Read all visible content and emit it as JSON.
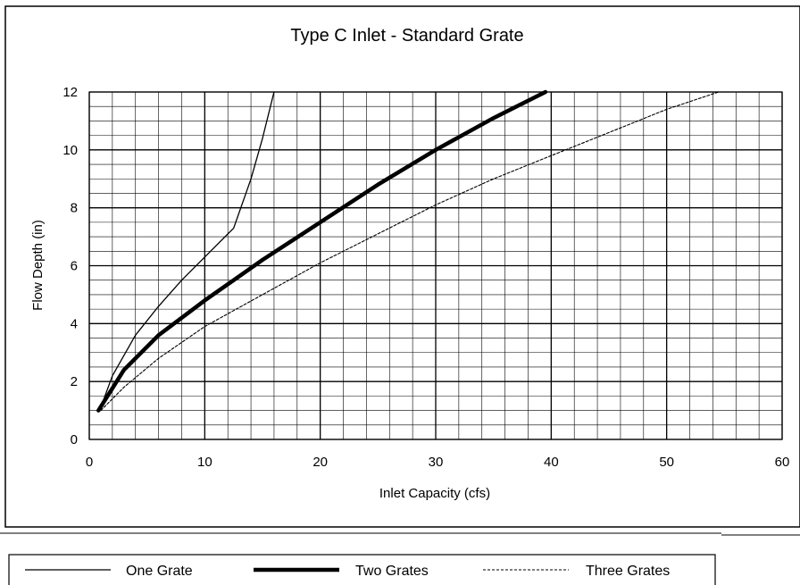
{
  "chart_data": {
    "type": "line",
    "title": "Type C Inlet - Standard Grate",
    "xlabel": "Inlet Capacity (cfs)",
    "ylabel": "Flow Depth (in)",
    "xlim": [
      0,
      60
    ],
    "ylim": [
      0,
      12
    ],
    "x_ticks": [
      0,
      10,
      20,
      30,
      40,
      50,
      60
    ],
    "y_ticks": [
      0,
      2,
      4,
      6,
      8,
      10,
      12
    ],
    "minor_grid_x": 2,
    "minor_grid_y": 0.5,
    "grid": true,
    "legend_position": "bottom",
    "series": [
      {
        "name": "One Grate",
        "style": "thin-solid",
        "color": "#000000",
        "x": [
          0.9,
          2.0,
          4.0,
          6.0,
          8.0,
          10.0,
          12.5,
          14.0,
          15.0,
          16.0
        ],
        "y": [
          1.0,
          2.2,
          3.6,
          4.6,
          5.5,
          6.3,
          7.3,
          9.0,
          10.4,
          12.0
        ]
      },
      {
        "name": "Two Grates",
        "style": "thick-solid",
        "color": "#000000",
        "x": [
          0.8,
          3.0,
          6.0,
          10.0,
          15.0,
          20.0,
          25.0,
          30.0,
          35.0,
          39.5
        ],
        "y": [
          1.0,
          2.4,
          3.6,
          4.8,
          6.2,
          7.5,
          8.8,
          10.0,
          11.1,
          12.0
        ]
      },
      {
        "name": "Three Grates",
        "style": "dashed",
        "color": "#000000",
        "x": [
          1.0,
          3.0,
          6.0,
          10.0,
          15.0,
          20.0,
          25.0,
          30.0,
          35.0,
          40.0,
          45.0,
          50.0,
          54.5
        ],
        "y": [
          1.0,
          1.8,
          2.8,
          3.9,
          5.0,
          6.1,
          7.1,
          8.1,
          9.0,
          9.8,
          10.6,
          11.4,
          12.0
        ]
      }
    ]
  }
}
